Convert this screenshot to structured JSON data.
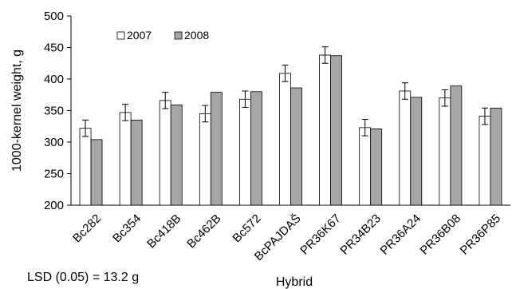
{
  "chart_data": {
    "type": "bar",
    "title": "",
    "xlabel": "Hybrid",
    "ylabel": "1000-kernel weight, g",
    "ylim": [
      200,
      500
    ],
    "yticks": [
      200,
      250,
      300,
      350,
      400,
      450,
      500
    ],
    "grid": false,
    "legend_position": "top-left",
    "categories": [
      "Bc282",
      "Bc354",
      "Bc418B",
      "Bc462B",
      "Bc572",
      "BcPAJDAŠ",
      "PR36K67",
      "PR34B23",
      "PR36A24",
      "PR36B08",
      "PR36P85"
    ],
    "series": [
      {
        "name": "2007",
        "color": "#ffffff",
        "values": [
          322,
          347,
          366,
          345,
          368,
          409,
          438,
          323,
          381,
          370,
          341
        ],
        "error": [
          13,
          13,
          13,
          13,
          13,
          13,
          13,
          13,
          13,
          13,
          13
        ]
      },
      {
        "name": "2008",
        "color": "#a6a6a6",
        "values": [
          304,
          335,
          359,
          379,
          380,
          386,
          437,
          321,
          371,
          389,
          354
        ]
      }
    ],
    "annotation": "LSD (0.05) = 13.2 g"
  }
}
